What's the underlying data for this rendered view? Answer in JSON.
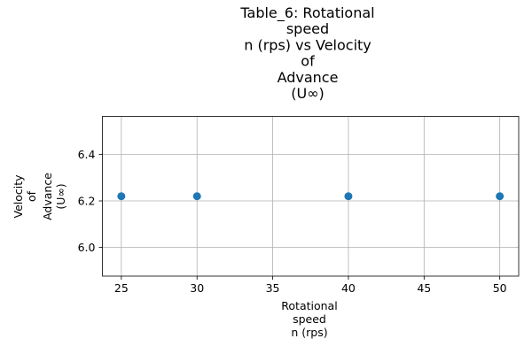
{
  "chart_data": {
    "type": "scatter",
    "title_lines": [
      "Table_6: Rotational",
      "speed",
      "n (rps) vs Velocity",
      "of",
      "Advance",
      "(U∞)"
    ],
    "xlabel_lines": [
      "Rotational",
      "speed",
      "n (rps)"
    ],
    "ylabel_lines": [
      "Velocity",
      "of",
      "Advance",
      "(U∞)"
    ],
    "x": [
      25,
      30,
      40,
      50
    ],
    "y": [
      6.22,
      6.22,
      6.22,
      6.22
    ],
    "xlim": [
      23.75,
      51.25
    ],
    "ylim": [
      5.876,
      6.564
    ],
    "xticks": [
      25,
      30,
      35,
      40,
      45,
      50
    ],
    "yticks": [
      6.0,
      6.2,
      6.4
    ],
    "ytick_labels": [
      "6.0",
      "6.2",
      "6.4"
    ],
    "grid": true,
    "marker_color": "#1f77b4"
  }
}
